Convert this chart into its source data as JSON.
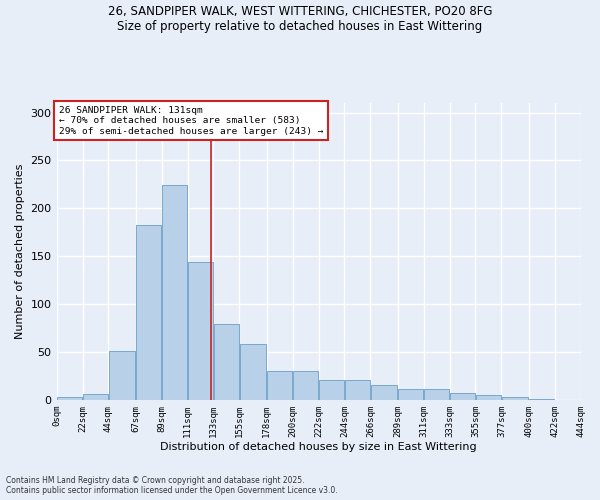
{
  "title_line1": "26, SANDPIPER WALK, WEST WITTERING, CHICHESTER, PO20 8FG",
  "title_line2": "Size of property relative to detached houses in East Wittering",
  "xlabel": "Distribution of detached houses by size in East Wittering",
  "ylabel": "Number of detached properties",
  "footnote_line1": "Contains HM Land Registry data © Crown copyright and database right 2025.",
  "footnote_line2": "Contains public sector information licensed under the Open Government Licence v3.0.",
  "annotation_title": "26 SANDPIPER WALK: 131sqm",
  "annotation_line1": "← 70% of detached houses are smaller (583)",
  "annotation_line2": "29% of semi-detached houses are larger (243) →",
  "bar_color": "#b8d0e8",
  "bar_edge_color": "#6b9fc8",
  "highlight_color": "#cc2222",
  "bg_color": "#e8eef8",
  "grid_color": "#ffffff",
  "tick_positions": [
    0,
    22,
    44,
    67,
    89,
    111,
    133,
    155,
    178,
    200,
    222,
    244,
    266,
    289,
    311,
    333,
    355,
    377,
    400,
    422,
    444
  ],
  "bin_labels": [
    "0sqm",
    "22sqm",
    "44sqm",
    "67sqm",
    "89sqm",
    "111sqm",
    "133sqm",
    "155sqm",
    "178sqm",
    "200sqm",
    "222sqm",
    "244sqm",
    "266sqm",
    "289sqm",
    "311sqm",
    "333sqm",
    "355sqm",
    "377sqm",
    "400sqm",
    "422sqm",
    "444sqm"
  ],
  "bar_lefts": [
    0,
    22,
    44,
    67,
    89,
    111,
    133,
    155,
    178,
    200,
    222,
    244,
    266,
    289,
    311,
    333,
    355,
    377,
    400,
    422
  ],
  "bar_widths": [
    22,
    22,
    23,
    22,
    22,
    22,
    22,
    23,
    22,
    22,
    22,
    22,
    23,
    22,
    22,
    22,
    22,
    23,
    22,
    22
  ],
  "values": [
    3,
    6,
    51,
    183,
    224,
    144,
    79,
    58,
    30,
    30,
    21,
    21,
    16,
    11,
    11,
    7,
    5,
    3,
    1,
    0
  ],
  "property_size": 131,
  "ylim": [
    0,
    310
  ],
  "yticks": [
    0,
    50,
    100,
    150,
    200,
    250,
    300
  ]
}
